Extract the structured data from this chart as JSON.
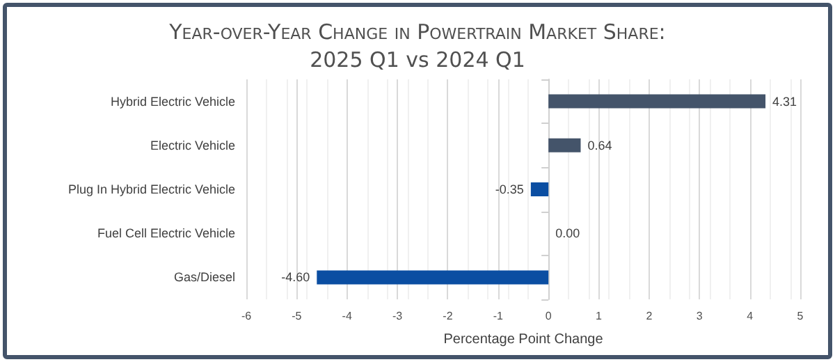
{
  "chart_data": {
    "type": "bar",
    "orientation": "horizontal",
    "title": "Year-over-Year Change in Powertrain Market Share:",
    "subtitle": "2025 Q1 vs 2024 Q1",
    "xlabel": "Percentage Point Change",
    "categories": [
      "Hybrid Electric Vehicle",
      "Electric Vehicle",
      "Plug In Hybrid Electric Vehicle",
      "Fuel Cell Electric Vehicle",
      "Gas/Diesel"
    ],
    "values": [
      4.31,
      0.64,
      -0.35,
      0.0,
      -4.6
    ],
    "colors": [
      "#44546a",
      "#44546a",
      "#0b4ea2",
      "#0b4ea2",
      "#0b4ea2"
    ],
    "value_labels": [
      "4.31",
      "0.64",
      "-0.35",
      "0.00",
      "-4.60"
    ],
    "xlim": [
      -6,
      5
    ],
    "xticks": [
      -6,
      -5,
      -4,
      -3,
      -2,
      -1,
      0,
      1,
      2,
      3,
      4,
      5
    ],
    "grid": "x"
  }
}
